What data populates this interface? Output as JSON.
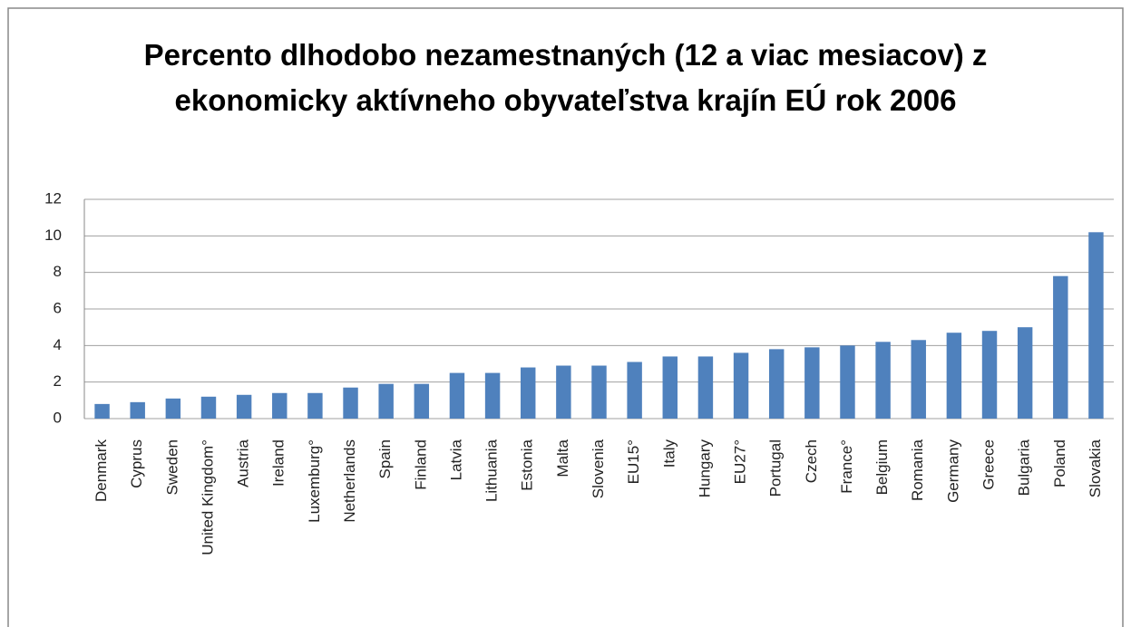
{
  "chart_data": {
    "type": "bar",
    "title": "Percento dlhodobo nezamestnaných (12 a viac mesiacov) z ekonomicky aktívneho obyvateľstva krajín EÚ rok 2006",
    "categories": [
      "Denmark",
      "Cyprus",
      "Sweden",
      "United Kingdom°",
      "Austria",
      "Ireland",
      "Luxemburg°",
      "Netherlands",
      "Spain",
      "Finland",
      "Latvia",
      "Lithuania",
      "Estonia",
      "Malta",
      "Slovenia",
      "EU15°",
      "Italy",
      "Hungary",
      "EU27°",
      "Portugal",
      "Czech",
      "France°",
      "Belgium",
      "Romania",
      "Germany",
      "Greece",
      "Bulgaria",
      "Poland",
      "Slovakia"
    ],
    "values": [
      0.8,
      0.9,
      1.1,
      1.2,
      1.3,
      1.4,
      1.4,
      1.7,
      1.9,
      1.9,
      2.5,
      2.5,
      2.8,
      2.9,
      2.9,
      3.1,
      3.4,
      3.4,
      3.6,
      3.8,
      3.9,
      4.0,
      4.2,
      4.3,
      4.7,
      4.8,
      5.0,
      7.8,
      10.2
    ],
    "color": "#4f81bd",
    "ylim": [
      0,
      12
    ],
    "yticks": [
      0,
      2,
      4,
      6,
      8,
      10,
      12
    ],
    "grid": true
  }
}
